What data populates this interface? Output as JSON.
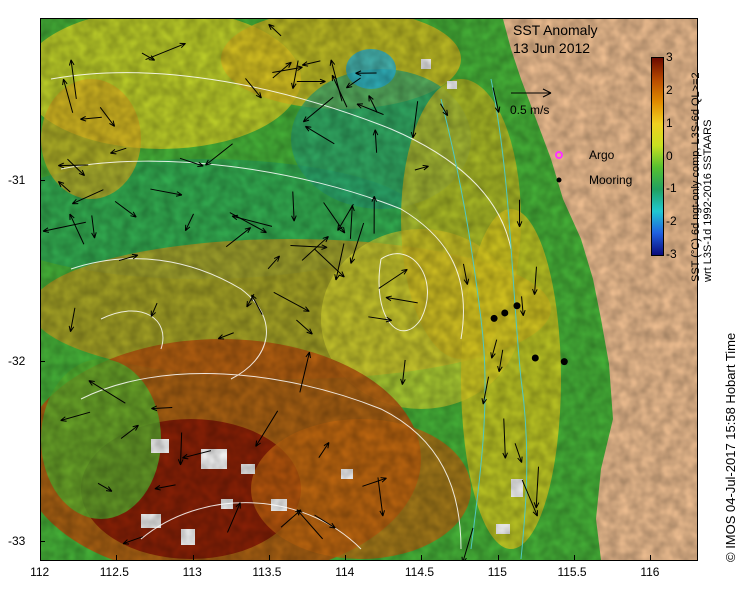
{
  "map": {
    "title": "SST Anomaly",
    "date": "13 Jun 2012",
    "scale_label": "0.5 m/s",
    "legend": [
      {
        "label": "Argo",
        "symbol": "magenta-circle-icon",
        "color": "#ff33ff"
      },
      {
        "label": "Mooring",
        "symbol": "black-star-icon",
        "color": "#000000"
      }
    ],
    "colorbar": {
      "label_line1": "SST (°C) 6d ngt-only comp, L3S-6d QL>=2",
      "label_line2": "wrt L3S-1d 1992-2016 SSTAARS",
      "ticks": [
        "3",
        "2",
        "1",
        "0",
        "-1",
        "-2",
        "-3"
      ],
      "range": [
        -3,
        3
      ],
      "colors": [
        "#6b0a00",
        "#b84a00",
        "#e08a00",
        "#f0d020",
        "#c8e020",
        "#55c030",
        "#20a060",
        "#20c8d0",
        "#2060e0",
        "#0a0a7a"
      ]
    },
    "x_axis": {
      "ticks": [
        "112",
        "112.5",
        "113",
        "113.5",
        "114",
        "114.5",
        "115",
        "115.5",
        "116"
      ],
      "range": [
        112,
        116.3
      ]
    },
    "y_axis": {
      "ticks": [
        "-31",
        "-32",
        "-33"
      ],
      "range": [
        -33.1,
        -30.1
      ]
    },
    "moorings": [
      {
        "lon": 114.97,
        "lat": -31.76
      },
      {
        "lon": 115.04,
        "lat": -31.73
      },
      {
        "lon": 115.12,
        "lat": -31.69
      },
      {
        "lon": 115.24,
        "lat": -31.98
      },
      {
        "lon": 115.43,
        "lat": -32.0
      }
    ],
    "land_color": "#f7c596",
    "credit": "© IMOS 04-Jul-2017 15:58 Hobart Time"
  }
}
